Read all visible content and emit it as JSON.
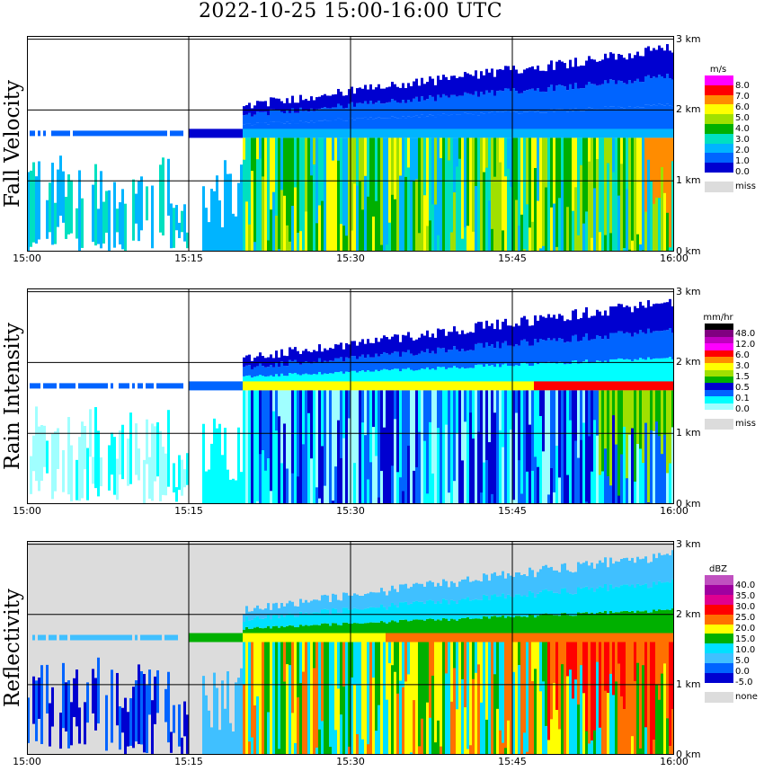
{
  "title": "2022-10-25   15:00-16:00 UTC",
  "x_ticks": [
    "15:00",
    "15:15",
    "15:30",
    "15:45",
    "16:00"
  ],
  "y_ticks": [
    "0 km",
    "1 km",
    "2 km",
    "3 km"
  ],
  "panels": [
    {
      "label": "Fall Velocity",
      "unit": "m/s",
      "legend": [
        "8.0",
        "7.0",
        "6.0",
        "5.0",
        "4.0",
        "3.0",
        "2.0",
        "1.0",
        "0.0"
      ],
      "colors": [
        "#ff00ff",
        "#ff0000",
        "#ff8c00",
        "#ffff00",
        "#a0e000",
        "#00b000",
        "#00e0c0",
        "#00b4ff",
        "#0064ff",
        "#0000d0"
      ],
      "missing_label": "miss",
      "missing_color": "#dcdcdc"
    },
    {
      "label": "Rain Intensity",
      "unit": "mm/hr",
      "legend": [
        "48.0",
        "12.0",
        "6.0",
        "3.0",
        "1.5",
        "0.5",
        "0.1",
        "0.0"
      ],
      "colors": [
        "#000000",
        "#800080",
        "#c000c0",
        "#ff00ff",
        "#ff0000",
        "#ff8c00",
        "#ffff00",
        "#a0e000",
        "#00b000",
        "#0000d0",
        "#0064ff",
        "#00ffff",
        "#a0ffff"
      ],
      "missing_label": "miss",
      "missing_color": "#dcdcdc"
    },
    {
      "label": "Reflectivity",
      "unit": "dBZ",
      "legend": [
        "40.0",
        "35.0",
        "30.0",
        "25.0",
        "20.0",
        "15.0",
        "10.0",
        "5.0",
        "0.0",
        "-5.0"
      ],
      "colors": [
        "#c050c0",
        "#a000a0",
        "#e00090",
        "#ff0000",
        "#ff7000",
        "#ffff00",
        "#00b000",
        "#00e0ff",
        "#40c0ff",
        "#0064ff",
        "#0000d0"
      ],
      "missing_label": "none",
      "missing_color": "#dcdcdc"
    }
  ],
  "chart_data": [
    {
      "type": "heatmap",
      "title": "2022-10-25   15:00-16:00 UTC",
      "ylabel": "Fall Velocity",
      "x_range": [
        "15:00",
        "16:00"
      ],
      "y_range_km": [
        0,
        3.0
      ],
      "colorbar_unit": "m/s",
      "colorbar_levels": [
        0.0,
        1.0,
        2.0,
        3.0,
        4.0,
        5.0,
        6.0,
        7.0,
        8.0
      ],
      "grid": true
    },
    {
      "type": "heatmap",
      "ylabel": "Rain Intensity",
      "x_range": [
        "15:00",
        "16:00"
      ],
      "y_range_km": [
        0,
        3.0
      ],
      "colorbar_unit": "mm/hr",
      "colorbar_levels": [
        0.0,
        0.1,
        0.5,
        1.5,
        3.0,
        6.0,
        12.0,
        48.0
      ],
      "grid": true
    },
    {
      "type": "heatmap",
      "ylabel": "Reflectivity",
      "x_range": [
        "15:00",
        "16:00"
      ],
      "y_range_km": [
        0,
        3.0
      ],
      "colorbar_unit": "dBZ",
      "colorbar_levels": [
        -5.0,
        0.0,
        5.0,
        10.0,
        15.0,
        20.0,
        25.0,
        30.0,
        35.0,
        40.0
      ],
      "grid": true
    }
  ]
}
